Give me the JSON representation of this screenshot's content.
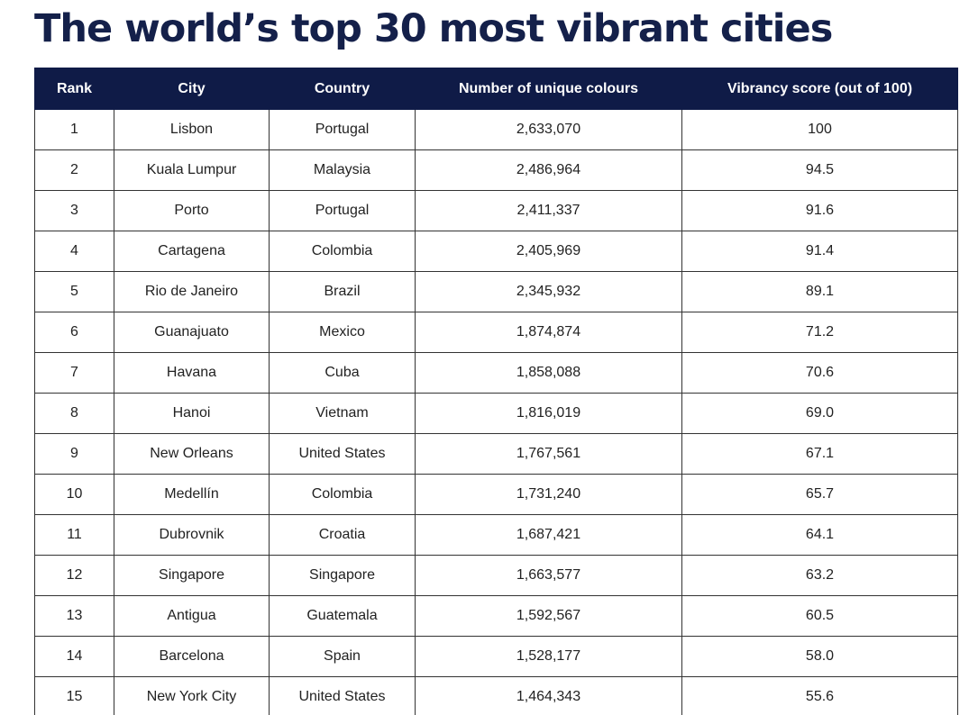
{
  "title": "The world’s top 30 most vibrant cities",
  "table": {
    "headers": [
      "Rank",
      "City",
      "Country",
      "Number of unique colours",
      "Vibrancy score (out of 100)"
    ],
    "rows": [
      [
        "1",
        "Lisbon",
        "Portugal",
        "2,633,070",
        "100"
      ],
      [
        "2",
        "Kuala Lumpur",
        "Malaysia",
        "2,486,964",
        "94.5"
      ],
      [
        "3",
        "Porto",
        "Portugal",
        "2,411,337",
        "91.6"
      ],
      [
        "4",
        "Cartagena",
        "Colombia",
        "2,405,969",
        "91.4"
      ],
      [
        "5",
        "Rio de Janeiro",
        "Brazil",
        "2,345,932",
        "89.1"
      ],
      [
        "6",
        "Guanajuato",
        "Mexico",
        "1,874,874",
        "71.2"
      ],
      [
        "7",
        "Havana",
        "Cuba",
        "1,858,088",
        "70.6"
      ],
      [
        "8",
        "Hanoi",
        "Vietnam",
        "1,816,019",
        "69.0"
      ],
      [
        "9",
        "New Orleans",
        "United States",
        "1,767,561",
        "67.1"
      ],
      [
        "10",
        "Medellín",
        "Colombia",
        "1,731,240",
        "65.7"
      ],
      [
        "11",
        "Dubrovnik",
        "Croatia",
        "1,687,421",
        "64.1"
      ],
      [
        "12",
        "Singapore",
        "Singapore",
        "1,663,577",
        "63.2"
      ],
      [
        "13",
        "Antigua",
        "Guatemala",
        "1,592,567",
        "60.5"
      ],
      [
        "14",
        "Barcelona",
        "Spain",
        "1,528,177",
        "58.0"
      ],
      [
        "15",
        "New York City",
        "United States",
        "1,464,343",
        "55.6"
      ]
    ]
  },
  "colors": {
    "title": "#14204a",
    "header_bg": "#0f1b47",
    "header_text": "#ffffff",
    "border": "#333333"
  }
}
